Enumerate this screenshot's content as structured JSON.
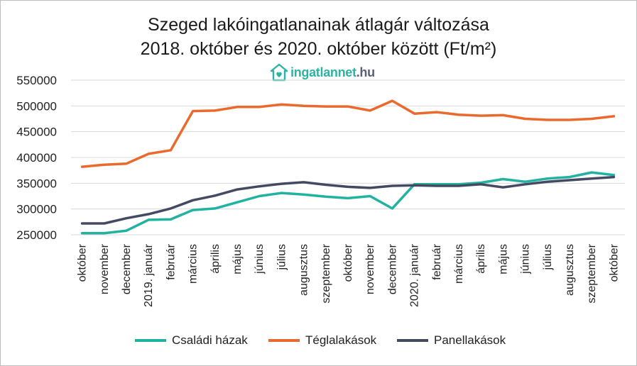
{
  "header": {
    "title_line1": "Szeged lakóingatlanainak átlagár változása",
    "title_line2": "2018. október és 2020. október között (Ft/m²)"
  },
  "logo": {
    "brand": "ingatlannet",
    "tld": ".hu",
    "icon": "house-heart-icon",
    "color": "#2bb3a3"
  },
  "colors": {
    "csaladi": "#21b2a0",
    "tegla": "#ea6a2d",
    "panel": "#454a63",
    "grid": "#d9d9d9",
    "axis_text": "#222222"
  },
  "chart_data": {
    "type": "line",
    "title": "Szeged lakóingatlanainak átlagár változása 2018. október és 2020. október között (Ft/m²)",
    "xlabel": "",
    "ylabel": "",
    "ylim": [
      250000,
      550000
    ],
    "yticks": [
      250000,
      300000,
      350000,
      400000,
      450000,
      500000,
      550000
    ],
    "grid": true,
    "legend_position": "bottom",
    "categories": [
      "október",
      "november",
      "december",
      "2019. január",
      "február",
      "március",
      "április",
      "május",
      "június",
      "július",
      "augusztus",
      "szeptember",
      "október",
      "november",
      "december",
      "2020. január",
      "február",
      "március",
      "április",
      "május",
      "június",
      "július",
      "augusztus",
      "szeptember",
      "október"
    ],
    "series": [
      {
        "name": "Családi házak",
        "color": "#21b2a0",
        "values": [
          253000,
          253000,
          258000,
          279000,
          280000,
          298000,
          301000,
          313000,
          325000,
          331000,
          328000,
          324000,
          321000,
          325000,
          301000,
          348000,
          348000,
          348000,
          351000,
          358000,
          353000,
          359000,
          362000,
          371000,
          366000
        ]
      },
      {
        "name": "Téglalakások",
        "color": "#ea6a2d",
        "values": [
          382000,
          386000,
          388000,
          407000,
          414000,
          490000,
          491000,
          498000,
          498000,
          503000,
          500000,
          499000,
          499000,
          491000,
          510000,
          485000,
          488000,
          483000,
          481000,
          482000,
          475000,
          473000,
          473000,
          475000,
          480000
        ]
      },
      {
        "name": "Panellakások",
        "color": "#454a63",
        "values": [
          272000,
          272000,
          282000,
          290000,
          301000,
          317000,
          326000,
          338000,
          344000,
          349000,
          352000,
          347000,
          343000,
          341000,
          345000,
          346000,
          345000,
          345000,
          348000,
          342000,
          348000,
          353000,
          356000,
          359000,
          362000
        ]
      }
    ]
  }
}
